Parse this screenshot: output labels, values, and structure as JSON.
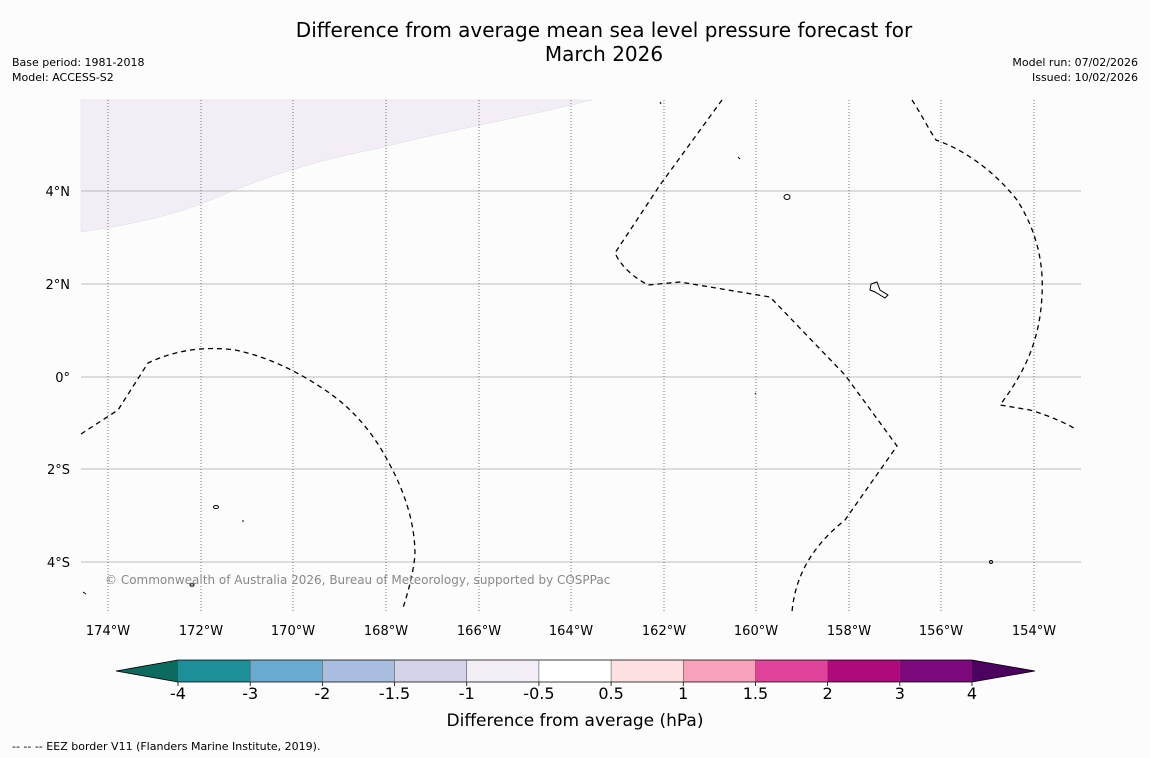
{
  "title_line1": "Difference from average mean sea level pressure forecast for",
  "title_line2": "March 2026",
  "base_period": "Base period: 1981-2018",
  "model": "Model: ACCESS-S2",
  "model_run": "Model run: 07/02/2026",
  "issued": "Issued: 10/02/2026",
  "copyright": "© Commonwealth of Australia 2026, Bureau of Meteorology, supported by COSPPac",
  "footer": "--  --  -- EEZ border V11 (Flanders Marine Institute, 2019).",
  "lat_labels": [
    "4°N",
    "2°N",
    "0°",
    "2°S",
    "4°S"
  ],
  "lon_labels": [
    "174°W",
    "172°W",
    "170°W",
    "168°W",
    "166°W",
    "164°W",
    "162°W",
    "160°W",
    "158°W",
    "156°W",
    "154°W"
  ],
  "colorbar": {
    "label": "Difference from average (hPa)",
    "ticks": [
      "-4",
      "-3",
      "-2",
      "-1.5",
      "-1",
      "-0.5",
      "0.5",
      "1",
      "1.5",
      "2",
      "3",
      "4"
    ],
    "colors": [
      "#0a6b5e",
      "#1d8f99",
      "#6aa9d0",
      "#a9bddf",
      "#d4d3ea",
      "#f3eef6",
      "#ffffff",
      "#fde0e2",
      "#f7a1bb",
      "#e0449a",
      "#ae0a7c",
      "#7c0a7d",
      "#4c0360"
    ]
  },
  "colors": {
    "positive_shading": "#f3eef6",
    "grid": "#bbbbbb"
  }
}
